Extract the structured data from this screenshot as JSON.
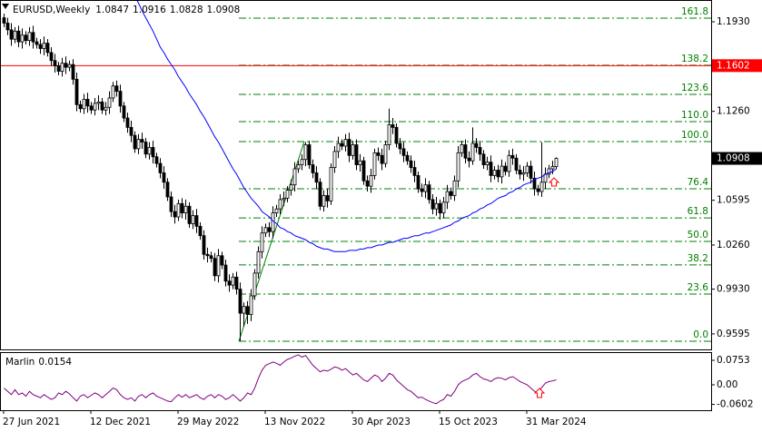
{
  "chart_data": {
    "type": "candlestick",
    "symbol": "EURUSD,Weekly",
    "up_color": "#ffffff",
    "down_color": "#000000",
    "categories": [
      "27 Jun 2021",
      null,
      null,
      null,
      null,
      null,
      null,
      null,
      null,
      null,
      null,
      null,
      null,
      null,
      null,
      null,
      null,
      null,
      null,
      null,
      null,
      null,
      null,
      null,
      "12 Dec 2021",
      null,
      null,
      null,
      null,
      null,
      null,
      null,
      null,
      null,
      null,
      null,
      null,
      null,
      null,
      null,
      null,
      null,
      null,
      null,
      null,
      null,
      null,
      null,
      "29 May 2022",
      null,
      null,
      null,
      null,
      null,
      null,
      null,
      null,
      null,
      null,
      null,
      null,
      null,
      null,
      null,
      null,
      null,
      null,
      null,
      null,
      null,
      null,
      null,
      "13 Nov 2022",
      null,
      null,
      null,
      null,
      null,
      null,
      null,
      null,
      null,
      null,
      null,
      null,
      null,
      null,
      null,
      null,
      null,
      null,
      null,
      null,
      null,
      null,
      null,
      "30 Apr 2023",
      null,
      null,
      null,
      null,
      null,
      null,
      null,
      null,
      null,
      null,
      null,
      null,
      null,
      null,
      null,
      null,
      null,
      null,
      null,
      null,
      null,
      null,
      null,
      "15 Oct 2023",
      null,
      null,
      null,
      null,
      null,
      null,
      null,
      null,
      null,
      null,
      null,
      null,
      null,
      null,
      null,
      null,
      null,
      null,
      null,
      null,
      null,
      null,
      null,
      "31 Mar 2024",
      null,
      null,
      null,
      null,
      null,
      null,
      null,
      null
    ],
    "ohlc": [
      [
        1.196,
        1.199,
        1.189,
        1.192
      ],
      [
        1.192,
        1.196,
        1.183,
        1.187
      ],
      [
        1.187,
        1.192,
        1.175,
        1.18
      ],
      [
        1.18,
        1.189,
        1.177,
        1.186
      ],
      [
        1.186,
        1.19,
        1.174,
        1.178
      ],
      [
        1.178,
        1.188,
        1.173,
        1.183
      ],
      [
        1.183,
        1.186,
        1.176,
        1.179
      ],
      [
        1.179,
        1.189,
        1.175,
        1.185
      ],
      [
        1.185,
        1.19,
        1.173,
        1.178
      ],
      [
        1.178,
        1.181,
        1.173,
        1.176
      ],
      [
        1.176,
        1.18,
        1.169,
        1.173
      ],
      [
        1.173,
        1.182,
        1.168,
        1.177
      ],
      [
        1.177,
        1.18,
        1.167,
        1.17
      ],
      [
        1.17,
        1.174,
        1.16,
        1.164
      ],
      [
        1.164,
        1.169,
        1.155,
        1.16
      ],
      [
        1.16,
        1.163,
        1.153,
        1.156
      ],
      [
        1.156,
        1.166,
        1.152,
        1.162
      ],
      [
        1.162,
        1.167,
        1.154,
        1.159
      ],
      [
        1.159,
        1.164,
        1.156,
        1.161
      ],
      [
        1.161,
        1.165,
        1.146,
        1.15
      ],
      [
        1.15,
        1.155,
        1.126,
        1.131
      ],
      [
        1.131,
        1.134,
        1.125,
        1.128
      ],
      [
        1.128,
        1.139,
        1.124,
        1.135
      ],
      [
        1.135,
        1.14,
        1.125,
        1.13
      ],
      [
        1.13,
        1.133,
        1.124,
        1.127
      ],
      [
        1.127,
        1.136,
        1.123,
        1.132
      ],
      [
        1.132,
        1.138,
        1.127,
        1.133
      ],
      [
        1.133,
        1.136,
        1.124,
        1.127
      ],
      [
        1.127,
        1.133,
        1.123,
        1.129
      ],
      [
        1.129,
        1.141,
        1.124,
        1.136
      ],
      [
        1.136,
        1.148,
        1.133,
        1.145
      ],
      [
        1.145,
        1.149,
        1.137,
        1.141
      ],
      [
        1.141,
        1.146,
        1.125,
        1.13
      ],
      [
        1.13,
        1.133,
        1.118,
        1.121
      ],
      [
        1.121,
        1.125,
        1.11,
        1.114
      ],
      [
        1.114,
        1.119,
        1.103,
        1.108
      ],
      [
        1.108,
        1.111,
        1.095,
        1.098
      ],
      [
        1.098,
        1.109,
        1.094,
        1.105
      ],
      [
        1.105,
        1.11,
        1.098,
        1.103
      ],
      [
        1.103,
        1.106,
        1.091,
        1.094
      ],
      [
        1.094,
        1.103,
        1.09,
        1.099
      ],
      [
        1.099,
        1.104,
        1.087,
        1.092
      ],
      [
        1.092,
        1.095,
        1.084,
        1.087
      ],
      [
        1.087,
        1.091,
        1.076,
        1.08
      ],
      [
        1.08,
        1.085,
        1.068,
        1.073
      ],
      [
        1.073,
        1.076,
        1.059,
        1.062
      ],
      [
        1.062,
        1.066,
        1.047,
        1.051
      ],
      [
        1.051,
        1.056,
        1.042,
        1.047
      ],
      [
        1.047,
        1.06,
        1.044,
        1.057
      ],
      [
        1.057,
        1.061,
        1.046,
        1.05
      ],
      [
        1.05,
        1.06,
        1.045,
        1.055
      ],
      [
        1.055,
        1.058,
        1.039,
        1.042
      ],
      [
        1.042,
        1.052,
        1.038,
        1.048
      ],
      [
        1.048,
        1.053,
        1.035,
        1.04
      ],
      [
        1.04,
        1.043,
        1.03,
        1.033
      ],
      [
        1.033,
        1.037,
        1.015,
        1.019
      ],
      [
        1.019,
        1.024,
        1.013,
        1.018
      ],
      [
        1.018,
        1.021,
        1.013,
        1.016
      ],
      [
        1.016,
        1.02,
        0.999,
        1.003
      ],
      [
        1.003,
        1.023,
        0.998,
        1.018
      ],
      [
        1.018,
        1.021,
        1.008,
        1.011
      ],
      [
        1.011,
        1.015,
        0.995,
        0.999
      ],
      [
        0.999,
        1.004,
        0.991,
        0.996
      ],
      [
        0.996,
        1.005,
        0.993,
        1.002
      ],
      [
        1.002,
        1.006,
        0.989,
        0.993
      ],
      [
        0.993,
        0.998,
        0.954,
        0.975
      ],
      [
        0.975,
        0.983,
        0.965,
        0.98
      ],
      [
        0.98,
        0.984,
        0.967,
        0.974
      ],
      [
        0.974,
        0.993,
        0.969,
        0.988
      ],
      [
        0.988,
        1.008,
        0.985,
        1.005
      ],
      [
        1.005,
        1.025,
        1.001,
        1.021
      ],
      [
        1.021,
        1.04,
        1.016,
        1.035
      ],
      [
        1.035,
        1.042,
        1.032,
        1.039
      ],
      [
        1.039,
        1.043,
        1.032,
        1.036
      ],
      [
        1.036,
        1.055,
        1.031,
        1.05
      ],
      [
        1.05,
        1.056,
        1.047,
        1.053
      ],
      [
        1.053,
        1.064,
        1.049,
        1.06
      ],
      [
        1.06,
        1.066,
        1.055,
        1.061
      ],
      [
        1.061,
        1.07,
        1.058,
        1.067
      ],
      [
        1.067,
        1.075,
        1.063,
        1.071
      ],
      [
        1.071,
        1.088,
        1.066,
        1.083
      ],
      [
        1.083,
        1.089,
        1.08,
        1.086
      ],
      [
        1.086,
        1.094,
        1.082,
        1.09
      ],
      [
        1.09,
        1.103,
        1.085,
        1.101
      ],
      [
        1.101,
        1.104,
        1.083,
        1.086
      ],
      [
        1.086,
        1.09,
        1.076,
        1.08
      ],
      [
        1.08,
        1.085,
        1.068,
        1.073
      ],
      [
        1.073,
        1.076,
        1.052,
        1.055
      ],
      [
        1.055,
        1.067,
        1.051,
        1.063
      ],
      [
        1.063,
        1.068,
        1.054,
        1.059
      ],
      [
        1.059,
        1.087,
        1.056,
        1.084
      ],
      [
        1.084,
        1.1,
        1.08,
        1.096
      ],
      [
        1.096,
        1.107,
        1.091,
        1.102
      ],
      [
        1.102,
        1.105,
        1.097,
        1.1
      ],
      [
        1.1,
        1.109,
        1.096,
        1.105
      ],
      [
        1.105,
        1.11,
        1.088,
        1.093
      ],
      [
        1.093,
        1.104,
        1.09,
        1.101
      ],
      [
        1.101,
        1.105,
        1.082,
        1.086
      ],
      [
        1.086,
        1.094,
        1.081,
        1.089
      ],
      [
        1.089,
        1.092,
        1.071,
        1.074
      ],
      [
        1.074,
        1.078,
        1.066,
        1.07
      ],
      [
        1.07,
        1.083,
        1.065,
        1.078
      ],
      [
        1.078,
        1.098,
        1.075,
        1.095
      ],
      [
        1.095,
        1.099,
        1.089,
        1.093
      ],
      [
        1.093,
        1.098,
        1.082,
        1.087
      ],
      [
        1.087,
        1.104,
        1.084,
        1.101
      ],
      [
        1.101,
        1.128,
        1.097,
        1.116
      ],
      [
        1.116,
        1.121,
        1.109,
        1.114
      ],
      [
        1.114,
        1.117,
        1.099,
        1.102
      ],
      [
        1.102,
        1.106,
        1.094,
        1.098
      ],
      [
        1.098,
        1.103,
        1.088,
        1.093
      ],
      [
        1.093,
        1.096,
        1.086,
        1.089
      ],
      [
        1.089,
        1.093,
        1.08,
        1.084
      ],
      [
        1.084,
        1.089,
        1.073,
        1.078
      ],
      [
        1.078,
        1.081,
        1.065,
        1.068
      ],
      [
        1.068,
        1.072,
        1.062,
        1.066
      ],
      [
        1.066,
        1.076,
        1.061,
        1.071
      ],
      [
        1.071,
        1.074,
        1.057,
        1.06
      ],
      [
        1.06,
        1.064,
        1.049,
        1.053
      ],
      [
        1.053,
        1.062,
        1.048,
        1.057
      ],
      [
        1.057,
        1.06,
        1.045,
        1.05
      ],
      [
        1.05,
        1.062,
        1.046,
        1.058
      ],
      [
        1.058,
        1.071,
        1.053,
        1.066
      ],
      [
        1.066,
        1.069,
        1.06,
        1.063
      ],
      [
        1.063,
        1.078,
        1.059,
        1.074
      ],
      [
        1.074,
        1.1,
        1.069,
        1.095
      ],
      [
        1.095,
        1.104,
        1.092,
        1.101
      ],
      [
        1.101,
        1.105,
        1.087,
        1.091
      ],
      [
        1.091,
        1.096,
        1.084,
        1.089
      ],
      [
        1.089,
        1.114,
        1.086,
        1.102
      ],
      [
        1.102,
        1.106,
        1.095,
        1.099
      ],
      [
        1.099,
        1.104,
        1.089,
        1.094
      ],
      [
        1.094,
        1.097,
        1.083,
        1.086
      ],
      [
        1.086,
        1.092,
        1.082,
        1.088
      ],
      [
        1.088,
        1.093,
        1.073,
        1.078
      ],
      [
        1.078,
        1.085,
        1.075,
        1.082
      ],
      [
        1.082,
        1.086,
        1.073,
        1.077
      ],
      [
        1.077,
        1.09,
        1.072,
        1.085
      ],
      [
        1.085,
        1.088,
        1.078,
        1.081
      ],
      [
        1.081,
        1.097,
        1.077,
        1.093
      ],
      [
        1.093,
        1.098,
        1.086,
        1.091
      ],
      [
        1.091,
        1.094,
        1.079,
        1.082
      ],
      [
        1.082,
        1.086,
        1.075,
        1.079
      ],
      [
        1.079,
        1.085,
        1.074,
        1.08
      ],
      [
        1.08,
        1.088,
        1.077,
        1.085
      ],
      [
        1.085,
        1.089,
        1.072,
        1.076
      ],
      [
        1.076,
        1.081,
        1.063,
        1.068
      ],
      [
        1.068,
        1.071,
        1.063,
        1.066
      ],
      [
        1.066,
        1.103,
        1.062,
        1.073
      ],
      [
        1.073,
        1.084,
        1.068,
        1.079
      ],
      [
        1.079,
        1.086,
        1.076,
        1.083
      ],
      [
        1.083,
        1.089,
        1.079,
        1.0847
      ],
      [
        1.0847,
        1.0916,
        1.0828,
        1.0908
      ]
    ],
    "ma": {
      "color": "#0000ff",
      "values": [
        null,
        null,
        null,
        null,
        null,
        null,
        null,
        null,
        null,
        null,
        null,
        null,
        null,
        null,
        null,
        null,
        null,
        null,
        null,
        null,
        null,
        null,
        null,
        null,
        null,
        null,
        null,
        null,
        null,
        null,
        null,
        null,
        null,
        null,
        null,
        null,
        1.212,
        1.207,
        1.201,
        1.196,
        1.191,
        1.186,
        1.18,
        1.174,
        1.17,
        1.165,
        1.161,
        1.157,
        1.152,
        1.148,
        1.144,
        1.139,
        1.135,
        1.131,
        1.126,
        1.122,
        1.117,
        1.112,
        1.107,
        1.103,
        1.098,
        1.093,
        1.088,
        1.083,
        1.079,
        1.074,
        1.069,
        1.065,
        1.061,
        1.058,
        1.055,
        1.051,
        1.049,
        1.047,
        1.044,
        1.042,
        1.039,
        1.038,
        1.036,
        1.035,
        1.033,
        1.032,
        1.031,
        1.03,
        1.028,
        1.027,
        1.025,
        1.024,
        1.023,
        1.023,
        1.022,
        1.021,
        1.021,
        1.021,
        1.021,
        1.022,
        1.022,
        1.022,
        1.023,
        1.023,
        1.024,
        1.024,
        1.025,
        1.026,
        1.026,
        1.027,
        1.028,
        1.028,
        1.029,
        1.03,
        1.031,
        1.031,
        1.032,
        1.033,
        1.033,
        1.034,
        1.035,
        1.035,
        1.036,
        1.037,
        1.038,
        1.039,
        1.04,
        1.041,
        1.043,
        1.044,
        1.046,
        1.047,
        1.048,
        1.05,
        1.051,
        1.053,
        1.054,
        1.056,
        1.057,
        1.059,
        1.061,
        1.062,
        1.063,
        1.065,
        1.066,
        1.068,
        1.069,
        1.071,
        1.072,
        1.073,
        1.075,
        1.076,
        1.077,
        1.079,
        1.08,
        1.081,
        1.083
      ]
    },
    "hline": {
      "value": 1.1602,
      "color": "#ff0000"
    },
    "fib_color": "#008000",
    "fib_levels": [
      {
        "label": "161.8",
        "price": 1.1957
      },
      {
        "label": "138.2",
        "price": 1.1605
      },
      {
        "label": "123.6",
        "price": 1.1387
      },
      {
        "label": "110.0",
        "price": 1.1183
      },
      {
        "label": "100.0",
        "price": 1.1034
      },
      {
        "label": "76.4",
        "price": 1.0681
      },
      {
        "label": "61.8",
        "price": 1.0463
      },
      {
        "label": "50.0",
        "price": 1.0287
      },
      {
        "label": "38.2",
        "price": 1.0111
      },
      {
        "label": "23.6",
        "price": 0.9893
      },
      {
        "label": "0.0",
        "price": 0.954
      }
    ],
    "ylim": [
      0.9479,
      1.2093
    ],
    "yticks": [
      {
        "value": 1.193,
        "label": "1.1930"
      },
      {
        "value": 1.126,
        "label": "1.1260"
      },
      1.0595,
      {
        "value": 1.026,
        "label": "1.0260"
      },
      {
        "value": 0.993,
        "label": "0.9930"
      },
      0.9595
    ],
    "indicator": {
      "type": "line",
      "name": "Marlin",
      "color": "#800080",
      "ylim": [
        -0.0781,
        0.1004
      ],
      "yticks": [
        0.0753,
        {
          "value": 0,
          "label": "0.00"
        },
        -0.0602
      ],
      "values": [
        -0.01,
        -0.02,
        -0.03,
        -0.015,
        -0.03,
        -0.025,
        -0.035,
        -0.02,
        -0.03,
        -0.035,
        -0.04,
        -0.03,
        -0.038,
        -0.045,
        -0.04,
        -0.025,
        -0.03,
        -0.02,
        -0.028,
        -0.04,
        -0.05,
        -0.035,
        -0.03,
        -0.04,
        -0.032,
        -0.025,
        -0.03,
        -0.04,
        -0.03,
        -0.02,
        -0.01,
        -0.015,
        -0.03,
        -0.04,
        -0.045,
        -0.04,
        -0.05,
        -0.035,
        -0.03,
        -0.04,
        -0.03,
        -0.025,
        -0.035,
        -0.04,
        -0.045,
        -0.05,
        -0.052,
        -0.04,
        -0.03,
        -0.038,
        -0.03,
        -0.04,
        -0.035,
        -0.03,
        -0.04,
        -0.045,
        -0.035,
        -0.03,
        -0.04,
        -0.03,
        -0.035,
        -0.045,
        -0.04,
        -0.03,
        -0.04,
        -0.05,
        -0.04,
        -0.025,
        -0.03,
        -0.01,
        0.02,
        0.045,
        0.06,
        0.065,
        0.07,
        0.066,
        0.06,
        0.07,
        0.078,
        0.082,
        0.088,
        0.092,
        0.085,
        0.09,
        0.075,
        0.06,
        0.05,
        0.04,
        0.045,
        0.042,
        0.048,
        0.055,
        0.052,
        0.045,
        0.05,
        0.04,
        0.03,
        0.035,
        0.025,
        0.015,
        0.01,
        0.02,
        0.03,
        0.025,
        0.01,
        0.02,
        0.035,
        0.03,
        0.015,
        0.005,
        -0.005,
        -0.015,
        -0.02,
        -0.03,
        -0.04,
        -0.038,
        -0.045,
        -0.05,
        -0.055,
        -0.058,
        -0.05,
        -0.045,
        -0.03,
        -0.035,
        -0.02,
        0.0,
        0.01,
        0.015,
        0.02,
        0.03,
        0.035,
        0.025,
        0.018,
        0.015,
        0.01,
        0.018,
        0.022,
        0.02,
        0.015,
        0.022,
        0.025,
        0.018,
        0.01,
        0.005,
        0.0,
        -0.01,
        -0.02,
        -0.022,
        -0.008,
        0.005,
        0.01,
        0.012,
        0.0154
      ]
    }
  }
}
